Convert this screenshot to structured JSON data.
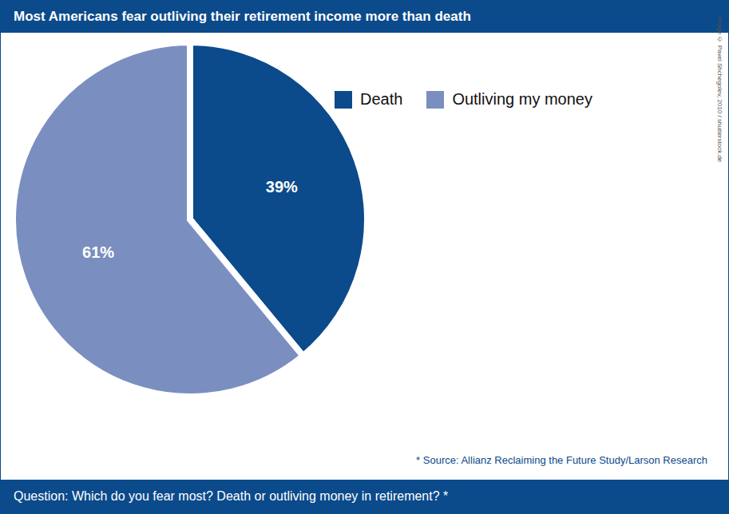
{
  "chart_data": {
    "type": "pie",
    "title": "Most Americans fear outliving their retirement income more than death",
    "categories": [
      "Death",
      "Outliving my money"
    ],
    "values": [
      39,
      61
    ],
    "value_labels": [
      "39%",
      "61%"
    ],
    "colors": [
      "#0b4a8b",
      "#7a8fc0"
    ],
    "data_labels": true,
    "legend": "top right",
    "source": "* Source: Allianz Reclaiming the Future Study/Larson Research",
    "question": "Question: Which do you fear most? Death or outliving money in retirement? *",
    "credit": "Image © Pavel Shchegolev, 2010 / shutterstock.de"
  }
}
